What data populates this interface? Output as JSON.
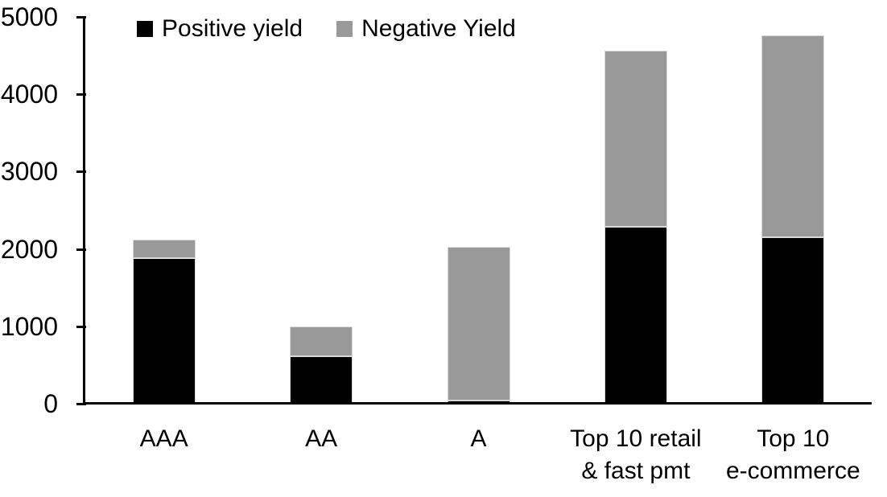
{
  "chart_data": {
    "type": "bar",
    "stacked": true,
    "title": "",
    "categories": [
      [
        "AAA"
      ],
      [
        "AA"
      ],
      [
        "A"
      ],
      [
        "Top 10 retail",
        "& fast pmt"
      ],
      [
        "Top 10",
        "e-commerce"
      ]
    ],
    "series": [
      {
        "name": "Positive yield",
        "color": "#000000",
        "values": [
          1880,
          610,
          40,
          2290,
          2150
        ]
      },
      {
        "name": "Negative Yield",
        "color": "#999999",
        "values": [
          240,
          390,
          1990,
          2270,
          2610
        ]
      }
    ],
    "y_ticks": [
      0,
      1000,
      2000,
      3000,
      4000,
      5000
    ],
    "ylim": [
      0,
      5000
    ],
    "legend_position": "top",
    "grid": false,
    "axis_color": "#000000",
    "bar_outline_color": "#d9d9d9",
    "background": "#ffffff"
  }
}
